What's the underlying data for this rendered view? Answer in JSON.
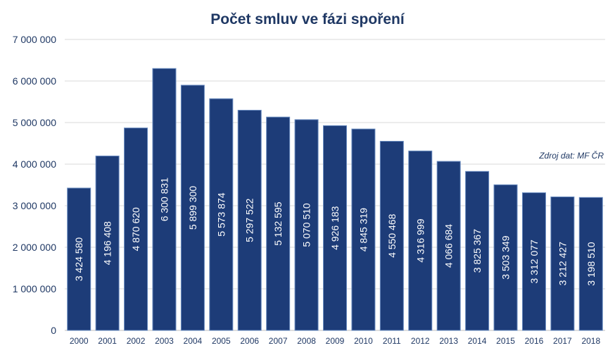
{
  "chart_data": {
    "type": "bar",
    "title": "Počet smluv ve fázi spoření",
    "source_note": "Zdroj dat: MF ČR",
    "xlabel": "",
    "ylabel": "",
    "ylim": [
      0,
      7000000
    ],
    "yticks": [
      0,
      1000000,
      2000000,
      3000000,
      4000000,
      5000000,
      6000000,
      7000000
    ],
    "ytick_labels": [
      "0",
      "1 000 000",
      "2 000 000",
      "3 000 000",
      "4 000 000",
      "5 000 000",
      "6 000 000",
      "7 000 000"
    ],
    "grid": true,
    "categories": [
      "2000",
      "2001",
      "2002",
      "2003",
      "2004",
      "2005",
      "2006",
      "2007",
      "2008",
      "2009",
      "2010",
      "2011",
      "2012",
      "2013",
      "2014",
      "2015",
      "2016",
      "2017",
      "2018"
    ],
    "values": [
      3424580,
      4196408,
      4870620,
      6300831,
      5899300,
      5573874,
      5297522,
      5132595,
      5070510,
      4926183,
      4845319,
      4550468,
      4316999,
      4066684,
      3825367,
      3503349,
      3312077,
      3212427,
      3198510
    ],
    "data_labels": [
      "3 424 580",
      "4 196 408",
      "4 870 620",
      "6 300 831",
      "5 899 300",
      "5 573 874",
      "5 297 522",
      "5 132 595",
      "5 070 510",
      "4 926 183",
      "4 845 319",
      "4 550 468",
      "4 316 999",
      "4 066 684",
      "3 825 367",
      "3 503 349",
      "3 312 077",
      "3 212 427",
      "3 198 510"
    ],
    "colors": {
      "bar": "#1d3c78",
      "bar_edge": "#6a8cc0",
      "title": "#1f3864",
      "grid": "#d9d9d9",
      "text": "#1f3864"
    }
  }
}
